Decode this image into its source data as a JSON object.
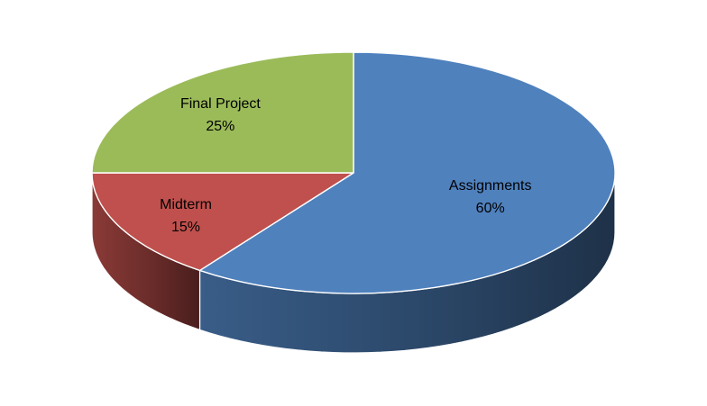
{
  "chart_data": {
    "type": "pie",
    "style": "3d",
    "legend": "none",
    "categories": [
      "Assignments",
      "Midterm",
      "Final Project"
    ],
    "values": [
      60,
      15,
      25
    ],
    "value_labels": [
      "60%",
      "15%",
      "25%"
    ],
    "colors": [
      "#4F81BD",
      "#C0504D",
      "#9BBB59"
    ]
  }
}
